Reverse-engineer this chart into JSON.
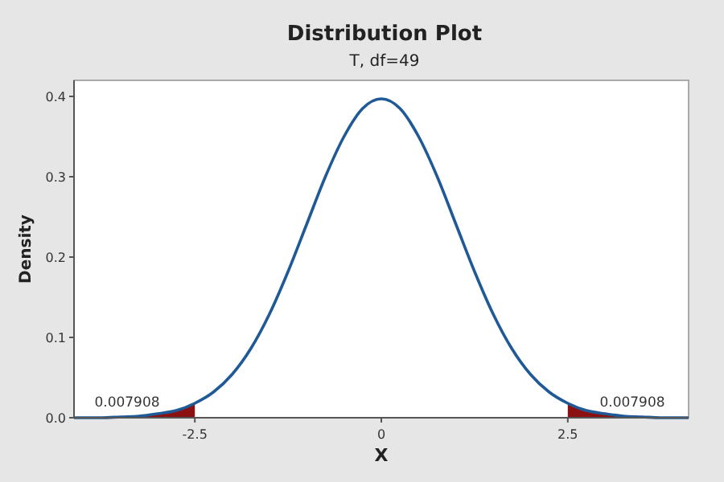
{
  "chart_data": {
    "type": "line",
    "title": "Distribution Plot",
    "subtitle": "T, df=49",
    "xlabel": "X",
    "ylabel": "Density",
    "xlim": [
      -4.12,
      4.12
    ],
    "xticks": [
      -2.5,
      0,
      2.5
    ],
    "ylim": [
      0,
      0.42
    ],
    "yticks": [
      {
        "value": 0,
        "label": "0.0"
      },
      0.1,
      0.2,
      0.3,
      0.4
    ],
    "grid": false,
    "series": [
      {
        "type": "area",
        "color": "#8b1111",
        "x": [
          -4.12,
          -3.75,
          -3.5,
          -3.25,
          -3,
          -2.75,
          -2.5
        ],
        "values": [
          0,
          0,
          0.001,
          0.002,
          0.005,
          0.009,
          0.018
        ]
      },
      {
        "type": "area",
        "color": "#8b1111",
        "x": [
          2.5,
          2.75,
          3,
          3.25,
          3.5,
          3.75,
          4.12
        ],
        "values": [
          0.018,
          0.009,
          0.005,
          0.002,
          0.001,
          0,
          0
        ]
      },
      {
        "color": "#1f5a96",
        "x": [
          -4.12,
          -3.75,
          -3.5,
          -3.25,
          -3,
          -2.75,
          -2.5,
          -2.25,
          -2,
          -1.75,
          -1.5,
          -1.25,
          -1,
          -0.75,
          -0.5,
          -0.25,
          0,
          0.25,
          0.5,
          0.75,
          1,
          1.25,
          1.5,
          1.75,
          2,
          2.25,
          2.5,
          2.75,
          3,
          3.25,
          3.5,
          3.75,
          4.12
        ],
        "values": [
          0,
          0,
          0.001,
          0.002,
          0.005,
          0.009,
          0.018,
          0.032,
          0.054,
          0.086,
          0.129,
          0.182,
          0.241,
          0.3,
          0.35,
          0.385,
          0.397,
          0.385,
          0.35,
          0.3,
          0.241,
          0.182,
          0.129,
          0.086,
          0.054,
          0.032,
          0.018,
          0.009,
          0.005,
          0.002,
          0.001,
          0,
          0
        ]
      }
    ],
    "annotations": [
      "0.007908",
      "0.007908"
    ]
  }
}
